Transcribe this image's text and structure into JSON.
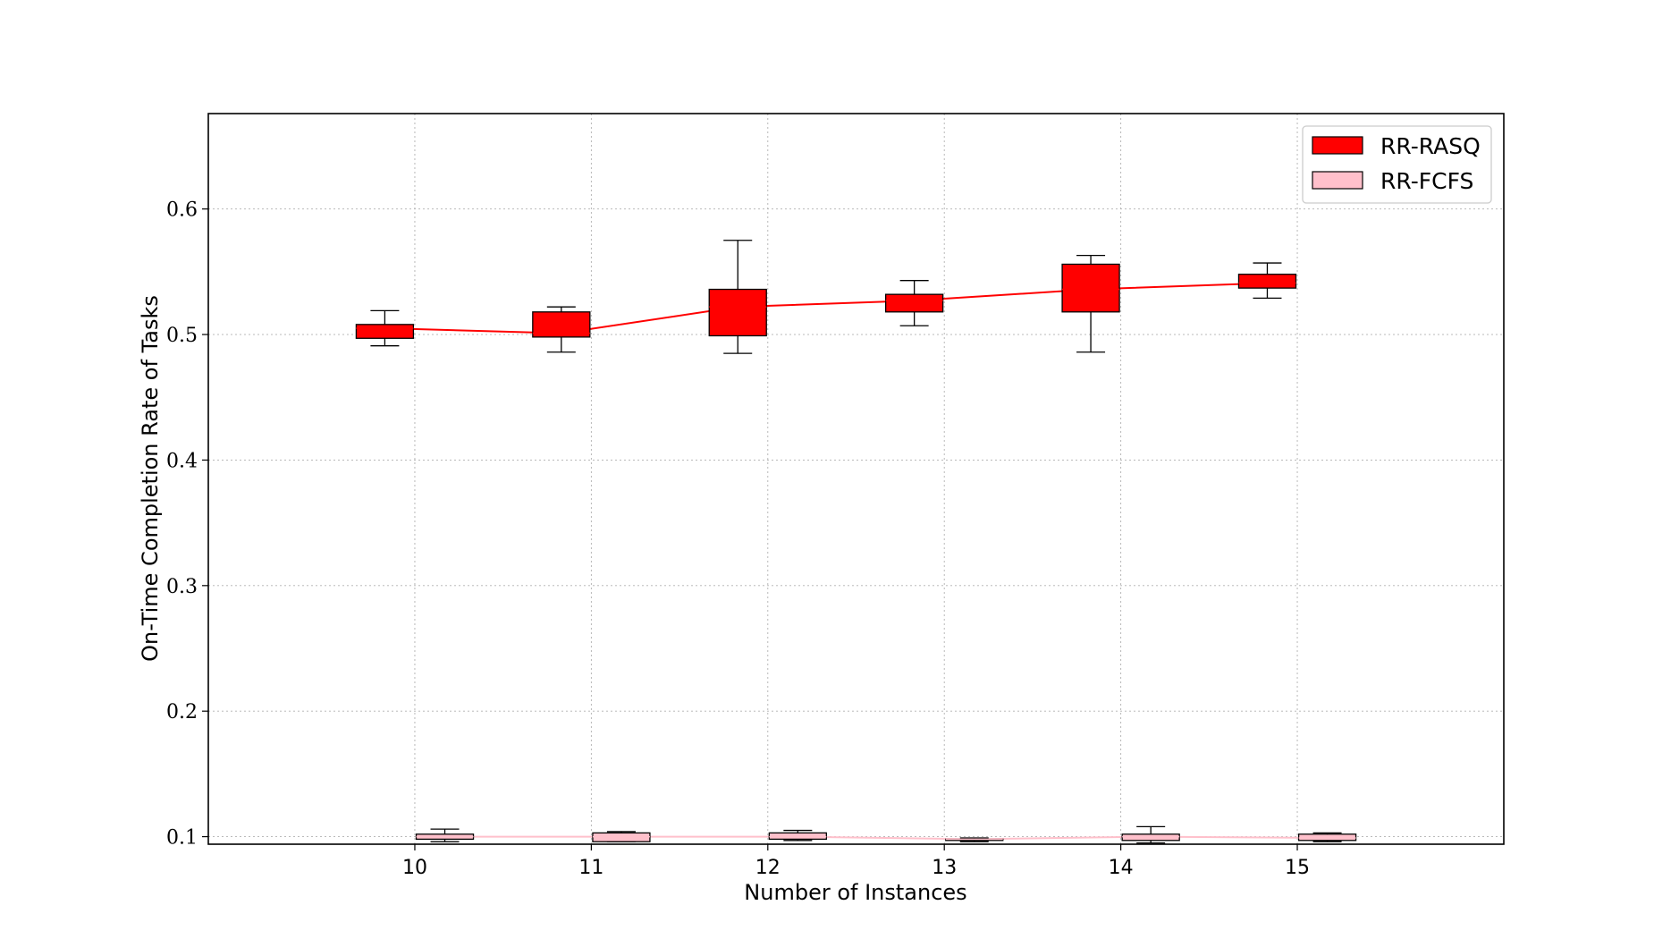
{
  "chart_data": {
    "type": "box",
    "title": "",
    "xlabel": "Number of Instances",
    "ylabel": "On-Time Completion Rate of Tasks",
    "categories": [
      "10",
      "11",
      "12",
      "13",
      "14",
      "15"
    ],
    "x": [
      10,
      11,
      12,
      13,
      14,
      15
    ],
    "xlim": [
      8.83,
      16.17
    ],
    "ylim": [
      0.094,
      0.676
    ],
    "yticks": [
      0.1,
      0.2,
      0.3,
      0.4,
      0.5,
      0.6
    ],
    "ytick_labels": [
      "0.1",
      "0.2",
      "0.3",
      "0.4",
      "0.5",
      "0.6"
    ],
    "grid": true,
    "legend_position": "top-right",
    "series": [
      {
        "name": "RR-RASQ",
        "color": "#ff0000",
        "edge_color": "#000000",
        "line_color": "#ff0000",
        "offset": -0.17,
        "boxes": [
          {
            "whisker_low": 0.491,
            "q1": 0.497,
            "median": 0.505,
            "q3": 0.508,
            "whisker_high": 0.519
          },
          {
            "whisker_low": 0.486,
            "q1": 0.498,
            "median": 0.501,
            "q3": 0.518,
            "whisker_high": 0.522
          },
          {
            "whisker_low": 0.485,
            "q1": 0.499,
            "median": 0.522,
            "q3": 0.536,
            "whisker_high": 0.575
          },
          {
            "whisker_low": 0.507,
            "q1": 0.518,
            "median": 0.527,
            "q3": 0.532,
            "whisker_high": 0.543
          },
          {
            "whisker_low": 0.486,
            "q1": 0.518,
            "median": 0.536,
            "q3": 0.556,
            "whisker_high": 0.563
          },
          {
            "whisker_low": 0.529,
            "q1": 0.537,
            "median": 0.541,
            "q3": 0.548,
            "whisker_high": 0.557
          }
        ]
      },
      {
        "name": "RR-FCFS",
        "color": "#ffc0cb",
        "edge_color": "#000000",
        "line_color": "#ffc0cb",
        "offset": 0.17,
        "boxes": [
          {
            "whisker_low": 0.096,
            "q1": 0.098,
            "median": 0.1,
            "q3": 0.102,
            "whisker_high": 0.106
          },
          {
            "whisker_low": 0.096,
            "q1": 0.096,
            "median": 0.1,
            "q3": 0.103,
            "whisker_high": 0.104
          },
          {
            "whisker_low": 0.097,
            "q1": 0.098,
            "median": 0.1,
            "q3": 0.103,
            "whisker_high": 0.105
          },
          {
            "whisker_low": 0.096,
            "q1": 0.097,
            "median": 0.098,
            "q3": 0.098,
            "whisker_high": 0.099
          },
          {
            "whisker_low": 0.095,
            "q1": 0.097,
            "median": 0.1,
            "q3": 0.102,
            "whisker_high": 0.108
          },
          {
            "whisker_low": 0.096,
            "q1": 0.097,
            "median": 0.099,
            "q3": 0.102,
            "whisker_high": 0.103
          }
        ]
      }
    ]
  }
}
